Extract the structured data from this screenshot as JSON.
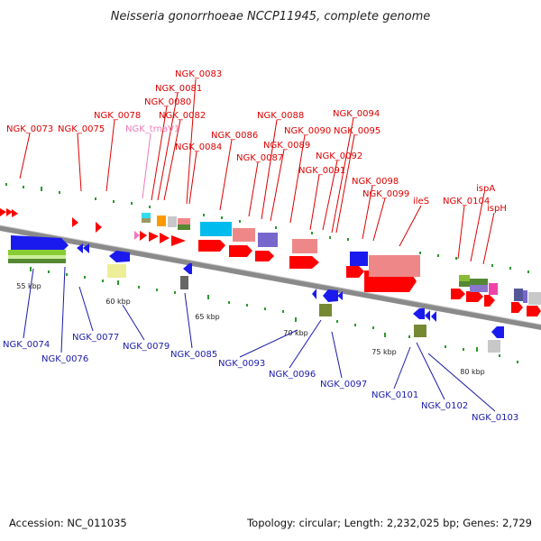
{
  "title": "Neisseria gonorrhoeae NCCP11945, complete genome",
  "footer": {
    "accession": "Accession: NC_011035",
    "topology": "Topology: circular; Length: 2,232,025 bp; Genes: 2,729"
  },
  "colors": {
    "top_label": "#dd0000",
    "bottom_label": "#1a1aaa",
    "trna_label": "#f07ab8",
    "backbone": "#8a8a8a",
    "gene_red": "#ff0000",
    "gene_blue": "#1a1aee",
    "grid_dot": "#2a9a2a"
  },
  "scale_ticks": [
    "55 kbp",
    "60 kbp",
    "65 kbp",
    "70 kbp",
    "75 kbp",
    "80 kbp"
  ],
  "top_labels": [
    "NGK_0073",
    "NGK_0075",
    "NGK_0078",
    "NGK_0083",
    "NGK_0081",
    "NGK_0080",
    "NGK_0082",
    "NGK_trnaV1",
    "NGK_0084",
    "NGK_0086",
    "NGK_0087",
    "NGK_0088",
    "NGK_0089",
    "NGK_0090",
    "NGK_0091",
    "NGK_0092",
    "NGK_0094",
    "NGK_0095",
    "NGK_0098",
    "NGK_0099",
    "ileS",
    "NGK_0104",
    "ispA",
    "ispH"
  ],
  "bottom_labels": [
    "NGK_0074",
    "NGK_0076",
    "NGK_0077",
    "NGK_0079",
    "NGK_0085",
    "NGK_0093",
    "NGK_0096",
    "NGK_0097",
    "NGK_0101",
    "NGK_0102",
    "NGK_0103"
  ]
}
